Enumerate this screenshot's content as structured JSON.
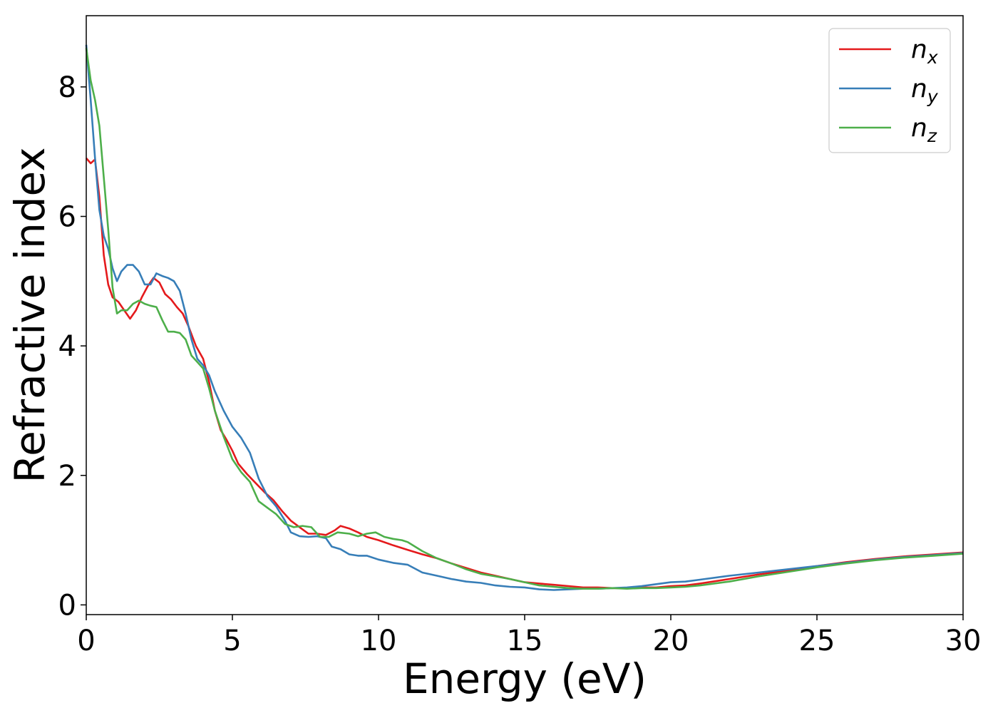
{
  "chart_data": {
    "type": "line",
    "title": "",
    "xlabel": "Energy (eV)",
    "ylabel": "Refractive index",
    "xlim": [
      0,
      30
    ],
    "ylim": [
      -0.15,
      9.1
    ],
    "xticks": [
      0,
      5,
      10,
      15,
      20,
      25,
      30
    ],
    "yticks": [
      0,
      2,
      4,
      6,
      8
    ],
    "grid": false,
    "legend_position": "top-right",
    "series": [
      {
        "name": "n",
        "subscript": "x",
        "color": "#e41a1c",
        "points": [
          [
            0,
            6.9
          ],
          [
            0.15,
            6.82
          ],
          [
            0.3,
            6.88
          ],
          [
            0.45,
            6.3
          ],
          [
            0.6,
            5.4
          ],
          [
            0.75,
            4.95
          ],
          [
            0.9,
            4.75
          ],
          [
            1.1,
            4.68
          ],
          [
            1.3,
            4.55
          ],
          [
            1.5,
            4.42
          ],
          [
            1.7,
            4.55
          ],
          [
            1.9,
            4.75
          ],
          [
            2.1,
            4.92
          ],
          [
            2.3,
            5.05
          ],
          [
            2.5,
            4.98
          ],
          [
            2.7,
            4.8
          ],
          [
            2.9,
            4.72
          ],
          [
            3.1,
            4.6
          ],
          [
            3.3,
            4.5
          ],
          [
            3.5,
            4.3
          ],
          [
            3.75,
            4.0
          ],
          [
            4.0,
            3.8
          ],
          [
            4.2,
            3.45
          ],
          [
            4.4,
            3.0
          ],
          [
            4.6,
            2.7
          ],
          [
            4.8,
            2.55
          ],
          [
            5.0,
            2.38
          ],
          [
            5.2,
            2.18
          ],
          [
            5.5,
            2.02
          ],
          [
            5.8,
            1.88
          ],
          [
            6.1,
            1.74
          ],
          [
            6.4,
            1.62
          ],
          [
            6.7,
            1.45
          ],
          [
            7.0,
            1.3
          ],
          [
            7.3,
            1.2
          ],
          [
            7.6,
            1.1
          ],
          [
            7.9,
            1.1
          ],
          [
            8.2,
            1.08
          ],
          [
            8.5,
            1.15
          ],
          [
            8.7,
            1.22
          ],
          [
            9.0,
            1.18
          ],
          [
            9.3,
            1.12
          ],
          [
            9.6,
            1.05
          ],
          [
            10.0,
            1.0
          ],
          [
            10.5,
            0.92
          ],
          [
            11.0,
            0.85
          ],
          [
            11.5,
            0.78
          ],
          [
            12.0,
            0.72
          ],
          [
            12.5,
            0.64
          ],
          [
            13.0,
            0.57
          ],
          [
            13.5,
            0.5
          ],
          [
            14.0,
            0.45
          ],
          [
            14.5,
            0.4
          ],
          [
            15.0,
            0.35
          ],
          [
            15.5,
            0.33
          ],
          [
            16.0,
            0.31
          ],
          [
            16.5,
            0.29
          ],
          [
            17.0,
            0.27
          ],
          [
            17.5,
            0.27
          ],
          [
            18.0,
            0.26
          ],
          [
            18.5,
            0.26
          ],
          [
            19.0,
            0.27
          ],
          [
            19.5,
            0.27
          ],
          [
            20.0,
            0.29
          ],
          [
            20.5,
            0.3
          ],
          [
            21.0,
            0.33
          ],
          [
            22.0,
            0.4
          ],
          [
            23.0,
            0.47
          ],
          [
            24.0,
            0.53
          ],
          [
            25.0,
            0.6
          ],
          [
            26.0,
            0.66
          ],
          [
            27.0,
            0.71
          ],
          [
            28.0,
            0.75
          ],
          [
            29.0,
            0.78
          ],
          [
            30.0,
            0.81
          ]
        ]
      },
      {
        "name": "n",
        "subscript": "y",
        "color": "#377eb8",
        "points": [
          [
            0,
            8.65
          ],
          [
            0.15,
            7.8
          ],
          [
            0.3,
            6.9
          ],
          [
            0.45,
            6.1
          ],
          [
            0.6,
            5.7
          ],
          [
            0.75,
            5.5
          ],
          [
            0.9,
            5.2
          ],
          [
            1.05,
            5.0
          ],
          [
            1.2,
            5.15
          ],
          [
            1.4,
            5.25
          ],
          [
            1.6,
            5.25
          ],
          [
            1.8,
            5.15
          ],
          [
            2.0,
            4.95
          ],
          [
            2.2,
            4.95
          ],
          [
            2.4,
            5.12
          ],
          [
            2.6,
            5.08
          ],
          [
            2.8,
            5.05
          ],
          [
            3.0,
            5.0
          ],
          [
            3.2,
            4.85
          ],
          [
            3.4,
            4.5
          ],
          [
            3.6,
            4.1
          ],
          [
            3.8,
            3.8
          ],
          [
            4.0,
            3.7
          ],
          [
            4.2,
            3.55
          ],
          [
            4.4,
            3.3
          ],
          [
            4.7,
            3.0
          ],
          [
            5.0,
            2.75
          ],
          [
            5.3,
            2.58
          ],
          [
            5.6,
            2.35
          ],
          [
            5.9,
            1.95
          ],
          [
            6.2,
            1.68
          ],
          [
            6.5,
            1.52
          ],
          [
            6.8,
            1.3
          ],
          [
            7.0,
            1.12
          ],
          [
            7.3,
            1.06
          ],
          [
            7.6,
            1.05
          ],
          [
            7.9,
            1.06
          ],
          [
            8.2,
            1.03
          ],
          [
            8.4,
            0.9
          ],
          [
            8.7,
            0.86
          ],
          [
            9.0,
            0.78
          ],
          [
            9.3,
            0.76
          ],
          [
            9.6,
            0.76
          ],
          [
            10.0,
            0.7
          ],
          [
            10.5,
            0.65
          ],
          [
            11.0,
            0.62
          ],
          [
            11.5,
            0.5
          ],
          [
            12.0,
            0.45
          ],
          [
            12.5,
            0.4
          ],
          [
            13.0,
            0.36
          ],
          [
            13.5,
            0.34
          ],
          [
            14.0,
            0.3
          ],
          [
            14.5,
            0.28
          ],
          [
            15.0,
            0.27
          ],
          [
            15.5,
            0.24
          ],
          [
            16.0,
            0.23
          ],
          [
            16.5,
            0.24
          ],
          [
            17.0,
            0.25
          ],
          [
            17.5,
            0.25
          ],
          [
            18.0,
            0.26
          ],
          [
            18.5,
            0.27
          ],
          [
            19.0,
            0.29
          ],
          [
            19.5,
            0.32
          ],
          [
            20.0,
            0.35
          ],
          [
            20.5,
            0.36
          ],
          [
            21.0,
            0.39
          ],
          [
            22.0,
            0.45
          ],
          [
            23.0,
            0.5
          ],
          [
            24.0,
            0.55
          ],
          [
            25.0,
            0.6
          ],
          [
            26.0,
            0.65
          ],
          [
            27.0,
            0.7
          ],
          [
            28.0,
            0.74
          ],
          [
            29.0,
            0.77
          ],
          [
            30.0,
            0.8
          ]
        ]
      },
      {
        "name": "n",
        "subscript": "z",
        "color": "#4daf4a",
        "points": [
          [
            0,
            8.6
          ],
          [
            0.15,
            8.1
          ],
          [
            0.3,
            7.8
          ],
          [
            0.45,
            7.4
          ],
          [
            0.6,
            6.6
          ],
          [
            0.75,
            5.8
          ],
          [
            0.9,
            4.9
          ],
          [
            1.05,
            4.5
          ],
          [
            1.2,
            4.55
          ],
          [
            1.4,
            4.55
          ],
          [
            1.6,
            4.65
          ],
          [
            1.8,
            4.7
          ],
          [
            2.0,
            4.65
          ],
          [
            2.2,
            4.62
          ],
          [
            2.4,
            4.6
          ],
          [
            2.6,
            4.4
          ],
          [
            2.8,
            4.22
          ],
          [
            3.0,
            4.22
          ],
          [
            3.2,
            4.2
          ],
          [
            3.4,
            4.1
          ],
          [
            3.6,
            3.85
          ],
          [
            3.8,
            3.75
          ],
          [
            4.0,
            3.65
          ],
          [
            4.2,
            3.35
          ],
          [
            4.4,
            3.0
          ],
          [
            4.7,
            2.6
          ],
          [
            5.0,
            2.25
          ],
          [
            5.3,
            2.05
          ],
          [
            5.6,
            1.9
          ],
          [
            5.9,
            1.6
          ],
          [
            6.2,
            1.5
          ],
          [
            6.5,
            1.4
          ],
          [
            6.8,
            1.25
          ],
          [
            7.1,
            1.2
          ],
          [
            7.4,
            1.22
          ],
          [
            7.7,
            1.2
          ],
          [
            8.0,
            1.05
          ],
          [
            8.3,
            1.05
          ],
          [
            8.6,
            1.12
          ],
          [
            9.0,
            1.1
          ],
          [
            9.3,
            1.06
          ],
          [
            9.6,
            1.1
          ],
          [
            9.9,
            1.12
          ],
          [
            10.2,
            1.05
          ],
          [
            10.5,
            1.02
          ],
          [
            10.8,
            1.0
          ],
          [
            11.0,
            0.97
          ],
          [
            11.5,
            0.83
          ],
          [
            12.0,
            0.72
          ],
          [
            12.5,
            0.64
          ],
          [
            13.0,
            0.55
          ],
          [
            13.5,
            0.48
          ],
          [
            14.0,
            0.44
          ],
          [
            14.5,
            0.4
          ],
          [
            15.0,
            0.35
          ],
          [
            15.5,
            0.3
          ],
          [
            16.0,
            0.28
          ],
          [
            16.5,
            0.26
          ],
          [
            17.0,
            0.25
          ],
          [
            17.5,
            0.25
          ],
          [
            18.0,
            0.26
          ],
          [
            18.5,
            0.25
          ],
          [
            19.0,
            0.26
          ],
          [
            19.5,
            0.26
          ],
          [
            20.0,
            0.27
          ],
          [
            20.5,
            0.28
          ],
          [
            21.0,
            0.3
          ],
          [
            22.0,
            0.36
          ],
          [
            23.0,
            0.44
          ],
          [
            24.0,
            0.51
          ],
          [
            25.0,
            0.58
          ],
          [
            26.0,
            0.64
          ],
          [
            27.0,
            0.69
          ],
          [
            28.0,
            0.73
          ],
          [
            29.0,
            0.76
          ],
          [
            30.0,
            0.79
          ]
        ]
      }
    ]
  }
}
